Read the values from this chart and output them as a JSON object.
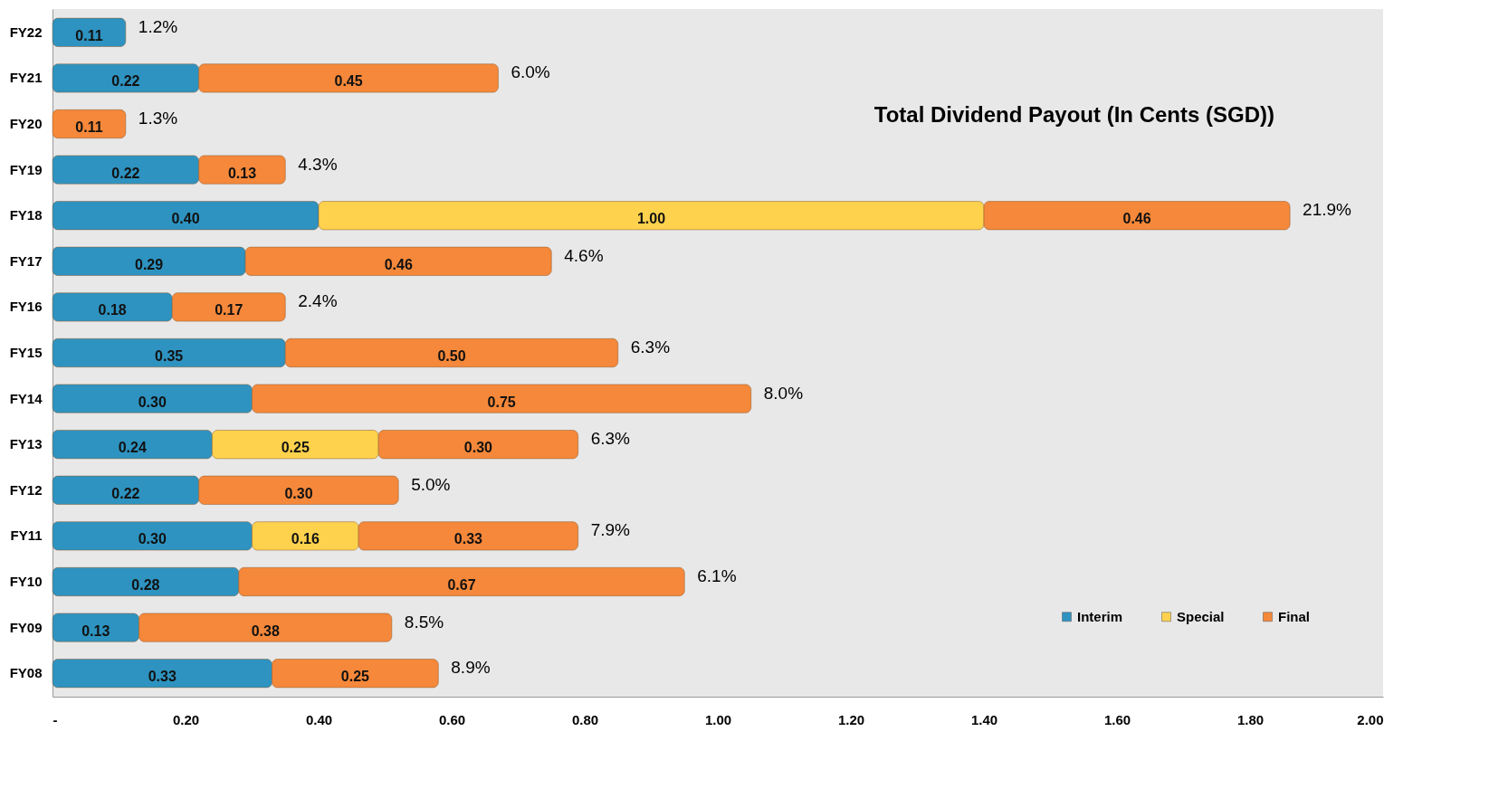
{
  "chart_data": {
    "type": "bar",
    "orientation": "horizontal",
    "stacked": true,
    "title": "Total Dividend Payout (In Cents (SGD))",
    "categories": [
      "FY22",
      "FY21",
      "FY20",
      "FY19",
      "FY18",
      "FY17",
      "FY16",
      "FY15",
      "FY14",
      "FY13",
      "FY12",
      "FY11",
      "FY10",
      "FY09",
      "FY08"
    ],
    "series": [
      {
        "name": "Interim",
        "color": "#2e93c0",
        "values": [
          0.11,
          0.22,
          null,
          0.22,
          0.4,
          0.29,
          0.18,
          0.35,
          0.3,
          0.24,
          0.22,
          0.3,
          0.28,
          0.13,
          0.33
        ],
        "value_labels": [
          "0.11",
          "0.22",
          null,
          "0.22",
          "0.40",
          "0.29",
          "0.18",
          "0.35",
          "0.30",
          "0.24",
          "0.22",
          "0.30",
          "0.28",
          "0.13",
          "0.33"
        ]
      },
      {
        "name": "Special",
        "color": "#ffd24d",
        "values": [
          null,
          null,
          null,
          null,
          1.0,
          null,
          null,
          null,
          null,
          0.25,
          null,
          0.16,
          null,
          null,
          null
        ],
        "value_labels": [
          null,
          null,
          null,
          null,
          "1.00",
          null,
          null,
          null,
          null,
          "0.25",
          null,
          "0.16",
          null,
          null,
          null
        ]
      },
      {
        "name": "Final",
        "color": "#f5883a",
        "values": [
          null,
          0.45,
          0.11,
          0.13,
          0.46,
          0.46,
          0.17,
          0.5,
          0.75,
          0.3,
          0.3,
          0.33,
          0.67,
          0.38,
          0.25
        ],
        "value_labels": [
          null,
          "0.45",
          "0.11",
          "0.13",
          "0.46",
          "0.46",
          "0.17",
          "0.50",
          "0.75",
          "0.30",
          "0.30",
          "0.33",
          "0.67",
          "0.38",
          "0.25"
        ]
      }
    ],
    "xlim": [
      0,
      2
    ],
    "xticks": [
      {
        "value": 0,
        "label": "-"
      },
      {
        "value": 0.2,
        "label": "0.20"
      },
      {
        "value": 0.4,
        "label": "0.40"
      },
      {
        "value": 0.6,
        "label": "0.60"
      },
      {
        "value": 0.8,
        "label": "0.80"
      },
      {
        "value": 1.0,
        "label": "1.00"
      },
      {
        "value": 1.2,
        "label": "1.20"
      },
      {
        "value": 1.4,
        "label": "1.40"
      },
      {
        "value": 1.6,
        "label": "1.60"
      },
      {
        "value": 1.8,
        "label": "1.80"
      },
      {
        "value": 2.0,
        "label": "2.00"
      }
    ],
    "grid": false,
    "legend": "bottom right",
    "annotations": [
      {
        "text": "1.2%",
        "x": 0.11,
        "y": "FY22"
      },
      {
        "text": "6.0%",
        "x": 0.67,
        "y": "FY21"
      },
      {
        "text": "1.3%",
        "x": 0.11,
        "y": "FY20"
      },
      {
        "text": "4.3%",
        "x": 0.35,
        "y": "FY19"
      },
      {
        "text": "21.9%",
        "x": 1.86,
        "y": "FY18"
      },
      {
        "text": "4.6%",
        "x": 0.75,
        "y": "FY17"
      },
      {
        "text": "2.4%",
        "x": 0.35,
        "y": "FY16"
      },
      {
        "text": "6.3%",
        "x": 0.85,
        "y": "FY15"
      },
      {
        "text": "8.0%",
        "x": 1.05,
        "y": "FY14"
      },
      {
        "text": "6.3%",
        "x": 0.79,
        "y": "FY13"
      },
      {
        "text": "5.0%",
        "x": 0.52,
        "y": "FY12"
      },
      {
        "text": "7.9%",
        "x": 0.79,
        "y": "FY11"
      },
      {
        "text": "6.1%",
        "x": 0.95,
        "y": "FY10"
      },
      {
        "text": "8.5%",
        "x": 0.51,
        "y": "FY09"
      },
      {
        "text": "8.9%",
        "x": 0.58,
        "y": "FY08"
      }
    ]
  }
}
